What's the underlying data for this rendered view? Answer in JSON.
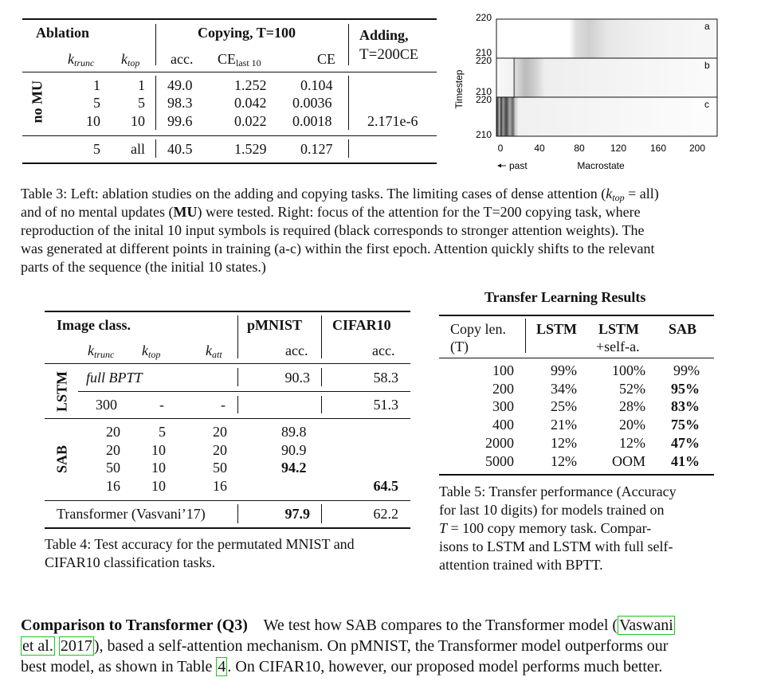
{
  "table3": {
    "header": {
      "ablation": "Ablation",
      "k_trunc_base": "k",
      "k_trunc_sub": "trunc",
      "k_top_base": "k",
      "k_top_sub": "top",
      "copying": "Copying, T=100",
      "acc": "acc.",
      "ce_last_base": "CE",
      "ce_last_sub": "last 10",
      "ce": "CE",
      "adding_line1": "Adding,",
      "adding_line2_main": "T=200",
      "adding_line2_sub": "CE"
    },
    "group_label": "no MU",
    "rows": [
      {
        "k_trunc": "1",
        "k_top": "1",
        "acc": "49.0",
        "ce_last": "1.252",
        "ce": "0.104",
        "adding": ""
      },
      {
        "k_trunc": "5",
        "k_top": "5",
        "acc": "98.3",
        "ce_last": "0.042",
        "ce": "0.0036",
        "adding": ""
      },
      {
        "k_trunc": "10",
        "k_top": "10",
        "acc": "99.6",
        "ce_last": "0.022",
        "ce": "0.0018",
        "adding": "2.171e-6"
      }
    ],
    "last_row": {
      "k_trunc": "5",
      "k_top": "all",
      "acc": "40.5",
      "ce_last": "1.529",
      "ce": "0.127",
      "adding": ""
    }
  },
  "figure": {
    "y_axis_label": "Timestep",
    "x_axis_label": "Macrostate",
    "past_label": "past",
    "x_ticks": [
      "0",
      "40",
      "80",
      "120",
      "160",
      "200"
    ],
    "panels": [
      {
        "letter": "a",
        "y_top": "220",
        "y_bottom": "210"
      },
      {
        "letter": "b",
        "y_top": "220",
        "y_bottom": "210"
      },
      {
        "letter": "c",
        "y_top": "220",
        "y_bottom": "210"
      }
    ]
  },
  "caption3": {
    "line1a": "Table 3: Left: ablation studies on the adding and copying tasks. The limiting cases of dense attention (",
    "line1_k": "k",
    "line1_sub": "top",
    "line1b": " = all)",
    "line2a": "and of no mental updates (",
    "line2_mu": "MU",
    "line2b": ") were tested. Right: focus of the attention for the T=200 copying task, where",
    "line3": "reproduction of the inital 10 input symbols is required (black corresponds to stronger attention weights). The",
    "line4": "was generated at different points in training (a-c) within the first epoch. Attention quickly shifts to the relevant",
    "line5": "parts of the sequence (the initial 10 states.)"
  },
  "table4": {
    "header": {
      "image_class": "Image class.",
      "k_trunc_base": "k",
      "k_trunc_sub": "trunc",
      "k_top_base": "k",
      "k_top_sub": "top",
      "k_att_base": "k",
      "k_att_sub": "att",
      "pmnist": "pMNIST",
      "cifar": "CIFAR10",
      "acc": "acc."
    },
    "lstm_label": "LSTM",
    "sab_label": "SAB",
    "lstm_rows": [
      {
        "k_trunc": "full BPTT",
        "k_top": "",
        "k_att": "",
        "pmnist": "90.3",
        "cifar": "58.3"
      },
      {
        "k_trunc": "300",
        "k_top": "-",
        "k_att": "-",
        "pmnist": "",
        "cifar": "51.3"
      }
    ],
    "sab_rows": [
      {
        "k_trunc": "20",
        "k_top": "5",
        "k_att": "20",
        "pmnist": "89.8",
        "cifar": ""
      },
      {
        "k_trunc": "20",
        "k_top": "10",
        "k_att": "20",
        "pmnist": "90.9",
        "cifar": ""
      },
      {
        "k_trunc": "50",
        "k_top": "10",
        "k_att": "50",
        "pmnist": "94.2",
        "cifar": ""
      },
      {
        "k_trunc": "16",
        "k_top": "10",
        "k_att": "16",
        "pmnist": "",
        "cifar": "64.5"
      }
    ],
    "transformer_row": {
      "label": "Transformer (Vasvani’17)",
      "pmnist": "97.9",
      "cifar": "62.2"
    }
  },
  "caption4": {
    "line1": "Table 4: Test accuracy for the permutated MNIST and",
    "line2": "CIFAR10 classification tasks."
  },
  "table5": {
    "title": "Transfer Learning Results",
    "header": {
      "copy_len_1": "Copy len.",
      "copy_len_2": "(T)",
      "lstm": "LSTM",
      "lstm_self_1": "LSTM",
      "lstm_self_2": "+self-a.",
      "sab": "SAB"
    },
    "rows": [
      {
        "T": "100",
        "lstm": "99%",
        "lstm_self": "100%",
        "sab": "99%",
        "sab_bold": false
      },
      {
        "T": "200",
        "lstm": "34%",
        "lstm_self": "52%",
        "sab": "95%",
        "sab_bold": true
      },
      {
        "T": "300",
        "lstm": "25%",
        "lstm_self": "28%",
        "sab": "83%",
        "sab_bold": true
      },
      {
        "T": "400",
        "lstm": "21%",
        "lstm_self": "20%",
        "sab": "75%",
        "sab_bold": true
      },
      {
        "T": "2000",
        "lstm": "12%",
        "lstm_self": "12%",
        "sab": "47%",
        "sab_bold": true
      },
      {
        "T": "5000",
        "lstm": "12%",
        "lstm_self": "OOM",
        "sab": "41%",
        "sab_bold": true
      }
    ]
  },
  "caption5": {
    "line1": "Table 5: Transfer performance (Accuracy",
    "line2": "for last 10 digits) for models trained on",
    "line3a": "T",
    "line3b": " = 100 copy memory task.  Compar-",
    "line4": "isons to LSTM and LSTM with full self-",
    "line5": "attention trained with BPTT."
  },
  "paragraph": {
    "heading": "Comparison to Transformer (Q3)",
    "text1": "We test how SAB compares to the Transformer model (",
    "link1a": "Vaswani",
    "link1b": "et al.",
    "link1c": "2017",
    "text2": "), based a self-attention mechanism. On pMNIST, the Transformer model outperforms our",
    "text3": "best model, as shown in Table ",
    "link2": "4",
    "text4": ". On CIFAR10, however, our proposed model performs much better."
  }
}
